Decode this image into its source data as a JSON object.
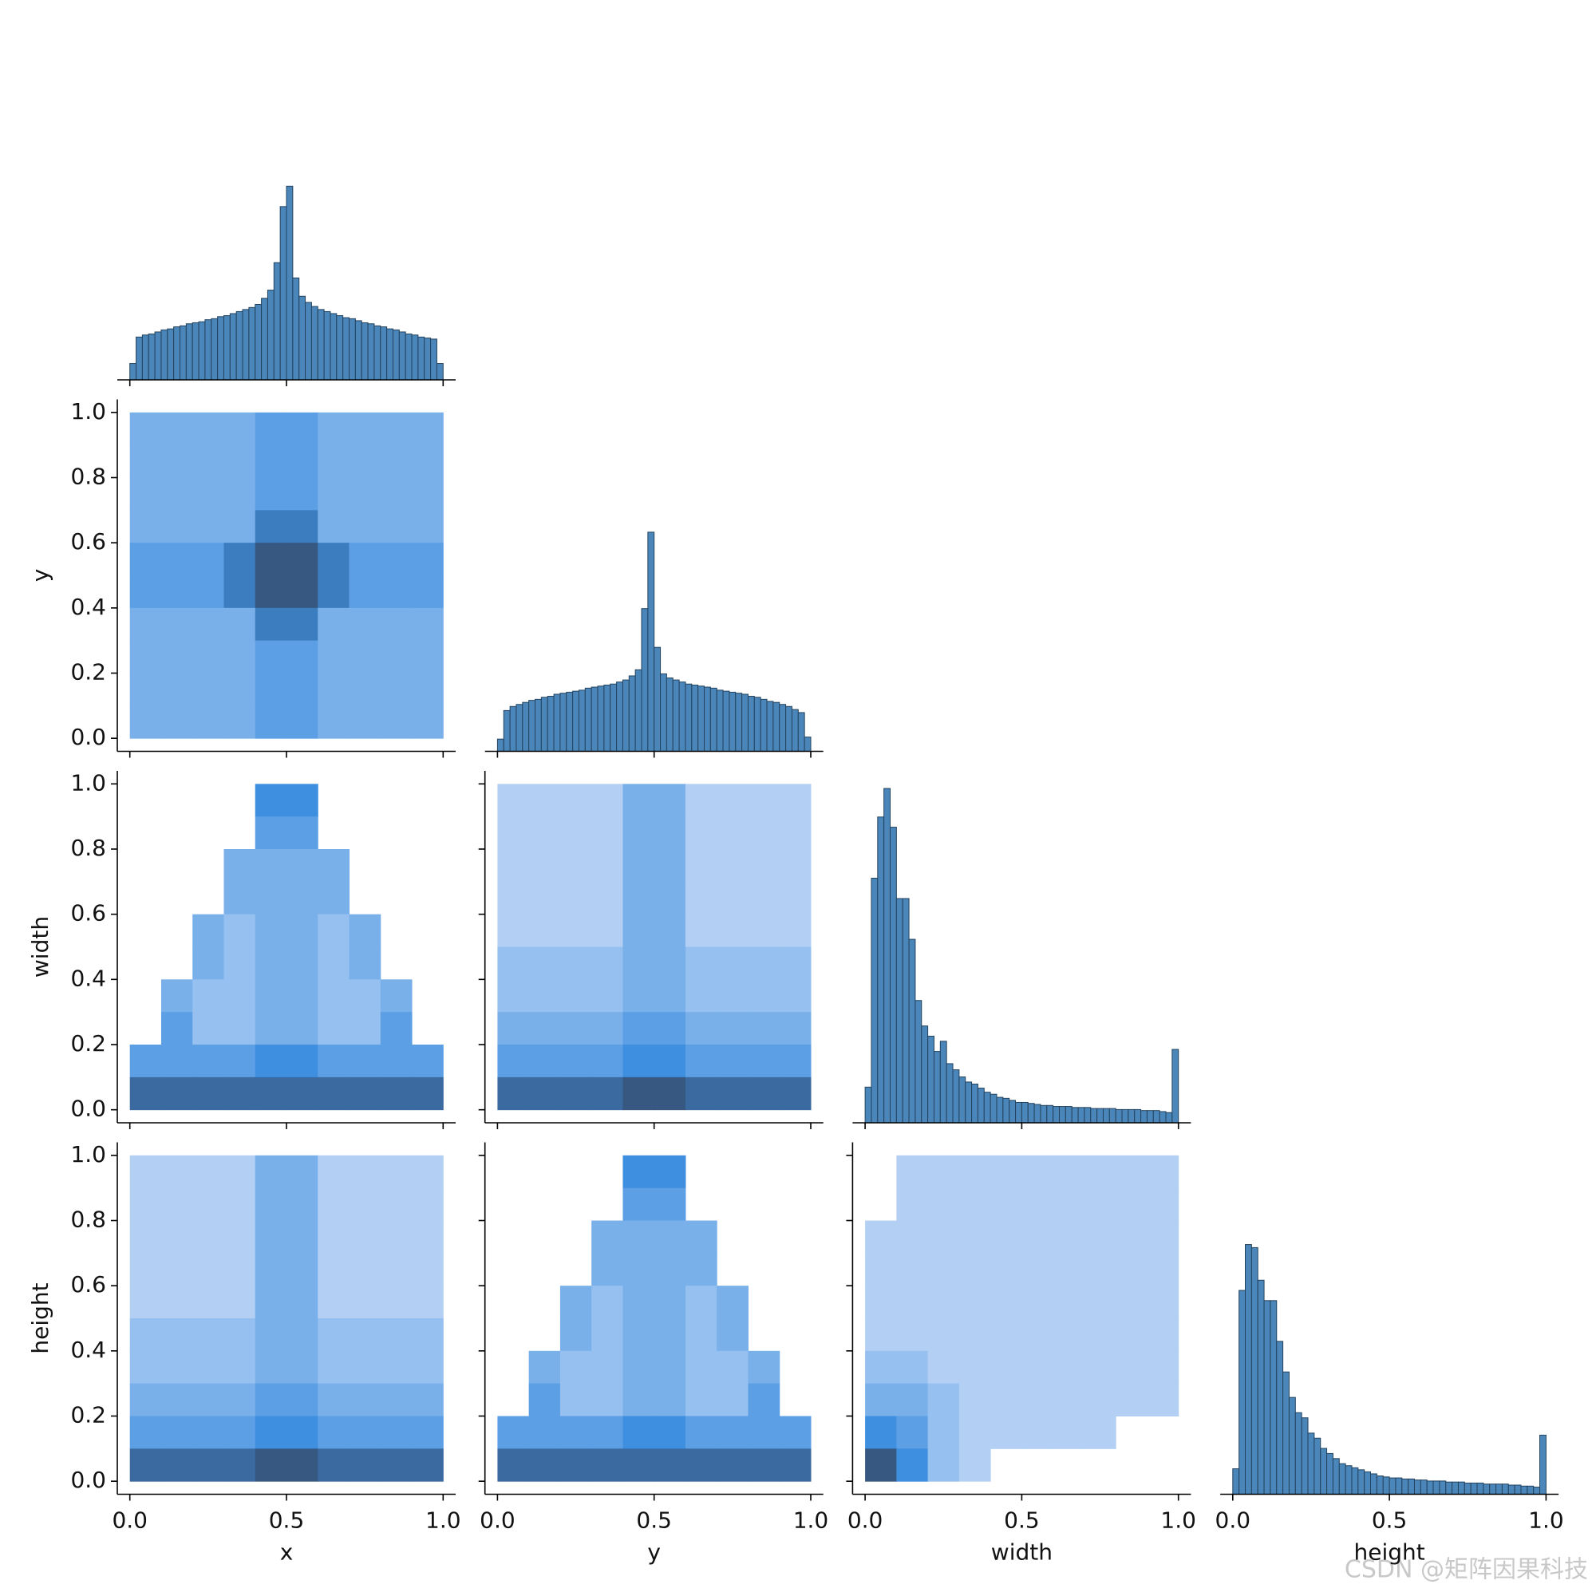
{
  "chart_data": {
    "type": "pairplot",
    "variables": [
      "x",
      "y",
      "width",
      "height"
    ],
    "xlim": [
      -0.04,
      1.04
    ],
    "ylim": [
      -0.04,
      1.04
    ],
    "xticks": [
      {
        "value": 0,
        "label": "0.0"
      },
      {
        "value": 0.5,
        "label": "0.5"
      },
      {
        "value": 1,
        "label": "1.0"
      }
    ],
    "yticks": [
      {
        "value": 0,
        "label": "0.0"
      },
      {
        "value": 0.2,
        "label": "0.2"
      },
      {
        "value": 0.4,
        "label": "0.4"
      },
      {
        "value": 0.6,
        "label": "0.6"
      },
      {
        "value": 0.8,
        "label": "0.8"
      },
      {
        "value": 1,
        "label": "1.0"
      }
    ],
    "bins": [
      0,
      0.02,
      0.04,
      0.06,
      0.08,
      0.1,
      0.12,
      0.14,
      0.16,
      0.18,
      0.2,
      0.22,
      0.24,
      0.26,
      0.28,
      0.3,
      0.32,
      0.34,
      0.36,
      0.38,
      0.4,
      0.42,
      0.44,
      0.46,
      0.48,
      0.5,
      0.52,
      0.54,
      0.56,
      0.58,
      0.6,
      0.62,
      0.64,
      0.66,
      0.68,
      0.7,
      0.72,
      0.74,
      0.76,
      0.78,
      0.8,
      0.82,
      0.84,
      0.86,
      0.88,
      0.9,
      0.92,
      0.94,
      0.96,
      0.98,
      1.0
    ],
    "hist_color": "#4a86ba",
    "cmap": [
      "#b3d0f4",
      "#3f8fe0",
      "#344560"
    ],
    "histograms": [
      [
        16,
        42,
        44,
        45,
        47,
        49,
        50,
        52,
        53,
        55,
        56,
        57,
        59,
        60,
        62,
        63,
        65,
        67,
        69,
        71,
        74,
        80,
        88,
        115,
        170,
        190,
        100,
        82,
        76,
        72,
        69,
        67,
        65,
        63,
        61,
        60,
        58,
        56,
        55,
        53,
        52,
        50,
        49,
        47,
        45,
        44,
        42,
        41,
        40,
        16
      ],
      [
        12,
        40,
        44,
        46,
        48,
        50,
        51,
        53,
        54,
        56,
        57,
        58,
        59,
        60,
        62,
        63,
        64,
        65,
        66,
        68,
        70,
        74,
        80,
        140,
        215,
        102,
        76,
        72,
        70,
        68,
        66,
        65,
        64,
        63,
        62,
        60,
        59,
        58,
        57,
        56,
        54,
        53,
        51,
        49,
        48,
        46,
        44,
        41,
        38,
        14
      ],
      [
        35,
        240,
        300,
        328,
        290,
        220,
        220,
        180,
        120,
        95,
        85,
        70,
        80,
        58,
        52,
        45,
        40,
        38,
        34,
        30,
        28,
        25,
        24,
        22,
        20,
        20,
        19,
        18,
        17,
        17,
        16,
        16,
        16,
        15,
        15,
        15,
        14,
        14,
        14,
        14,
        13,
        13,
        13,
        13,
        12,
        12,
        12,
        11,
        10,
        72
      ],
      [
        25,
        200,
        245,
        242,
        210,
        190,
        190,
        150,
        120,
        95,
        80,
        75,
        60,
        55,
        45,
        40,
        35,
        30,
        28,
        26,
        24,
        22,
        20,
        18,
        17,
        16,
        16,
        15,
        15,
        14,
        14,
        13,
        13,
        13,
        12,
        12,
        12,
        11,
        11,
        11,
        10,
        10,
        10,
        10,
        9,
        9,
        8,
        8,
        7,
        58
      ]
    ],
    "heatmaps": [
      [
        [
          3,
          3,
          3,
          3,
          4,
          4,
          3,
          3,
          3,
          3
        ],
        [
          3,
          3,
          3,
          3,
          4,
          4,
          3,
          3,
          3,
          3
        ],
        [
          3,
          3,
          3,
          3,
          4,
          4,
          3,
          3,
          3,
          3
        ],
        [
          3,
          3,
          3,
          3,
          6,
          6,
          3,
          3,
          3,
          3
        ],
        [
          4,
          4,
          4,
          6,
          8,
          8,
          6,
          4,
          4,
          4
        ],
        [
          4,
          4,
          4,
          6,
          8,
          8,
          6,
          4,
          4,
          4
        ],
        [
          3,
          3,
          3,
          3,
          6,
          6,
          3,
          3,
          3,
          3
        ],
        [
          3,
          3,
          3,
          3,
          4,
          4,
          3,
          3,
          3,
          3
        ],
        [
          3,
          3,
          3,
          3,
          4,
          4,
          3,
          3,
          3,
          3
        ],
        [
          3,
          3,
          3,
          3,
          4,
          4,
          3,
          3,
          3,
          3
        ]
      ],
      [
        [
          0,
          0,
          0,
          0,
          5,
          5,
          0,
          0,
          0,
          0
        ],
        [
          0,
          0,
          0,
          0,
          4,
          4,
          0,
          0,
          0,
          0
        ],
        [
          0,
          0,
          0,
          3,
          3,
          3,
          3,
          0,
          0,
          0
        ],
        [
          0,
          0,
          0,
          3,
          3,
          3,
          3,
          0,
          0,
          0
        ],
        [
          0,
          0,
          3,
          2,
          3,
          3,
          2,
          3,
          0,
          0
        ],
        [
          0,
          0,
          3,
          2,
          3,
          3,
          2,
          3,
          0,
          0
        ],
        [
          0,
          3,
          2,
          2,
          3,
          3,
          2,
          2,
          3,
          0
        ],
        [
          0,
          4,
          2,
          2,
          3,
          3,
          2,
          2,
          4,
          0
        ],
        [
          4,
          4,
          4,
          4,
          5,
          5,
          4,
          4,
          4,
          4
        ],
        [
          7,
          7,
          7,
          7,
          7,
          7,
          7,
          7,
          7,
          7
        ]
      ],
      [
        [
          1,
          1,
          1,
          1,
          3,
          3,
          1,
          1,
          1,
          1
        ],
        [
          1,
          1,
          1,
          1,
          3,
          3,
          1,
          1,
          1,
          1
        ],
        [
          1,
          1,
          1,
          1,
          3,
          3,
          1,
          1,
          1,
          1
        ],
        [
          1,
          1,
          1,
          1,
          3,
          3,
          1,
          1,
          1,
          1
        ],
        [
          1,
          1,
          1,
          1,
          3,
          3,
          1,
          1,
          1,
          1
        ],
        [
          2,
          2,
          2,
          2,
          3,
          3,
          2,
          2,
          2,
          2
        ],
        [
          2,
          2,
          2,
          2,
          3,
          3,
          2,
          2,
          2,
          2
        ],
        [
          3,
          3,
          3,
          3,
          4,
          4,
          3,
          3,
          3,
          3
        ],
        [
          4,
          4,
          4,
          4,
          5,
          5,
          4,
          4,
          4,
          4
        ],
        [
          7,
          7,
          7,
          7,
          8,
          8,
          7,
          7,
          7,
          7
        ]
      ],
      [
        [
          1,
          1,
          1,
          1,
          3,
          3,
          1,
          1,
          1,
          1
        ],
        [
          1,
          1,
          1,
          1,
          3,
          3,
          1,
          1,
          1,
          1
        ],
        [
          1,
          1,
          1,
          1,
          3,
          3,
          1,
          1,
          1,
          1
        ],
        [
          1,
          1,
          1,
          1,
          3,
          3,
          1,
          1,
          1,
          1
        ],
        [
          1,
          1,
          1,
          1,
          3,
          3,
          1,
          1,
          1,
          1
        ],
        [
          2,
          2,
          2,
          2,
          3,
          3,
          2,
          2,
          2,
          2
        ],
        [
          2,
          2,
          2,
          2,
          3,
          3,
          2,
          2,
          2,
          2
        ],
        [
          3,
          3,
          3,
          3,
          4,
          4,
          3,
          3,
          3,
          3
        ],
        [
          4,
          4,
          4,
          4,
          5,
          5,
          4,
          4,
          4,
          4
        ],
        [
          7,
          7,
          7,
          7,
          8,
          8,
          7,
          7,
          7,
          7
        ]
      ],
      [
        [
          0,
          0,
          0,
          0,
          5,
          5,
          0,
          0,
          0,
          0
        ],
        [
          0,
          0,
          0,
          0,
          4,
          4,
          0,
          0,
          0,
          0
        ],
        [
          0,
          0,
          0,
          3,
          3,
          3,
          3,
          0,
          0,
          0
        ],
        [
          0,
          0,
          0,
          3,
          3,
          3,
          3,
          0,
          0,
          0
        ],
        [
          0,
          0,
          3,
          2,
          3,
          3,
          2,
          3,
          0,
          0
        ],
        [
          0,
          0,
          3,
          2,
          3,
          3,
          2,
          3,
          0,
          0
        ],
        [
          0,
          3,
          2,
          2,
          3,
          3,
          2,
          2,
          3,
          0
        ],
        [
          0,
          4,
          2,
          2,
          3,
          3,
          2,
          2,
          4,
          0
        ],
        [
          4,
          4,
          4,
          4,
          5,
          5,
          4,
          4,
          4,
          4
        ],
        [
          7,
          7,
          7,
          7,
          7,
          7,
          7,
          7,
          7,
          7
        ]
      ],
      [
        [
          0,
          1,
          1,
          1,
          1,
          1,
          1,
          1,
          1,
          1
        ],
        [
          0,
          1,
          1,
          1,
          1,
          1,
          1,
          1,
          1,
          1
        ],
        [
          1,
          1,
          1,
          1,
          1,
          1,
          1,
          1,
          1,
          1
        ],
        [
          1,
          1,
          1,
          1,
          1,
          1,
          1,
          1,
          1,
          1
        ],
        [
          1,
          1,
          1,
          1,
          1,
          1,
          1,
          1,
          1,
          1
        ],
        [
          1,
          1,
          1,
          1,
          1,
          1,
          1,
          1,
          1,
          1
        ],
        [
          2,
          2,
          1,
          1,
          1,
          1,
          1,
          1,
          1,
          1
        ],
        [
          3,
          3,
          2,
          1,
          1,
          1,
          1,
          1,
          1,
          1
        ],
        [
          5,
          4,
          2,
          1,
          1,
          1,
          1,
          1,
          0,
          0
        ],
        [
          8,
          5,
          2,
          1,
          0,
          0,
          0,
          0,
          0,
          0
        ]
      ]
    ],
    "watermark": "CSDN @矩阵因果科技"
  }
}
